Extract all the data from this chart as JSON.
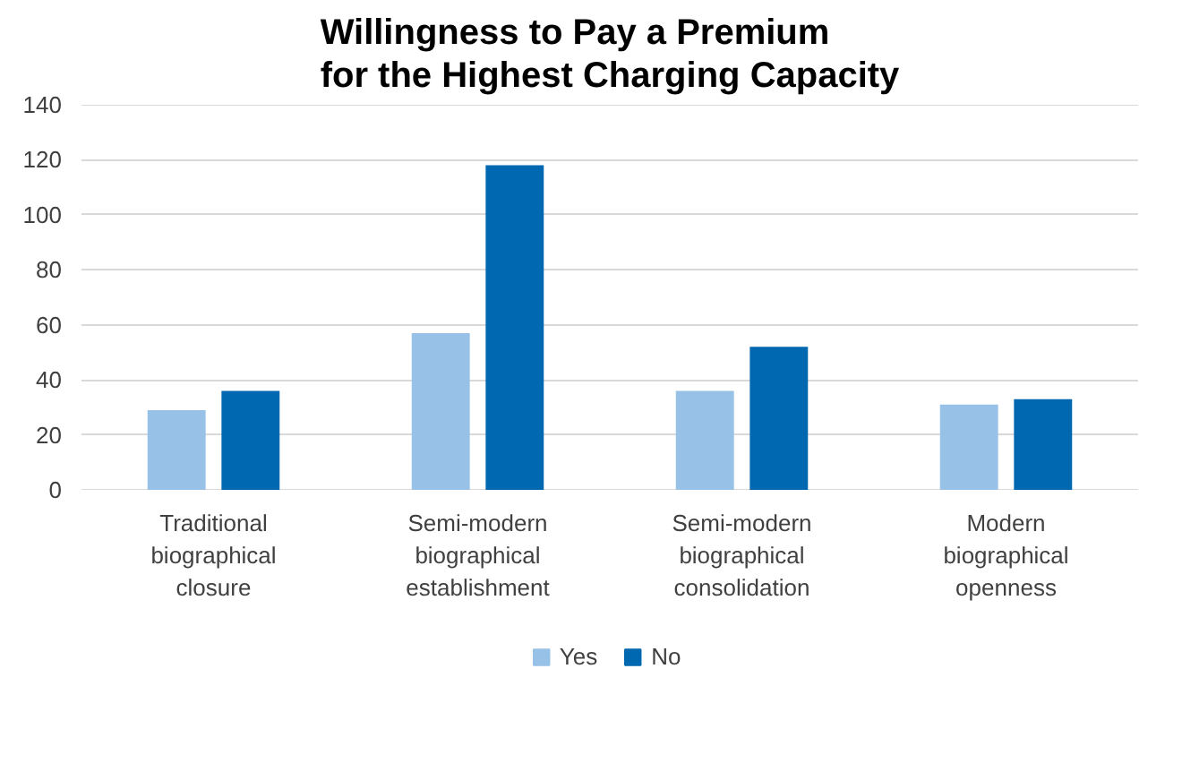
{
  "chart_data": {
    "type": "bar",
    "title": "Willingness to Pay a Premium\nfor the Highest Charging Capacity",
    "categories": [
      "Traditional biographical closure",
      "Semi-modern biographical establishment",
      "Semi-modern biographical consolidation",
      "Modern biographical openness"
    ],
    "series": [
      {
        "name": "Yes",
        "color": "#97c1e7",
        "values": [
          29,
          57,
          36,
          31
        ]
      },
      {
        "name": "No",
        "color": "#0067b1",
        "values": [
          36,
          118,
          52,
          33
        ]
      }
    ],
    "ylim": [
      0,
      140
    ],
    "yticks": [
      0,
      20,
      40,
      60,
      80,
      100,
      120,
      140
    ],
    "grid": "y",
    "legend": "bottom"
  }
}
